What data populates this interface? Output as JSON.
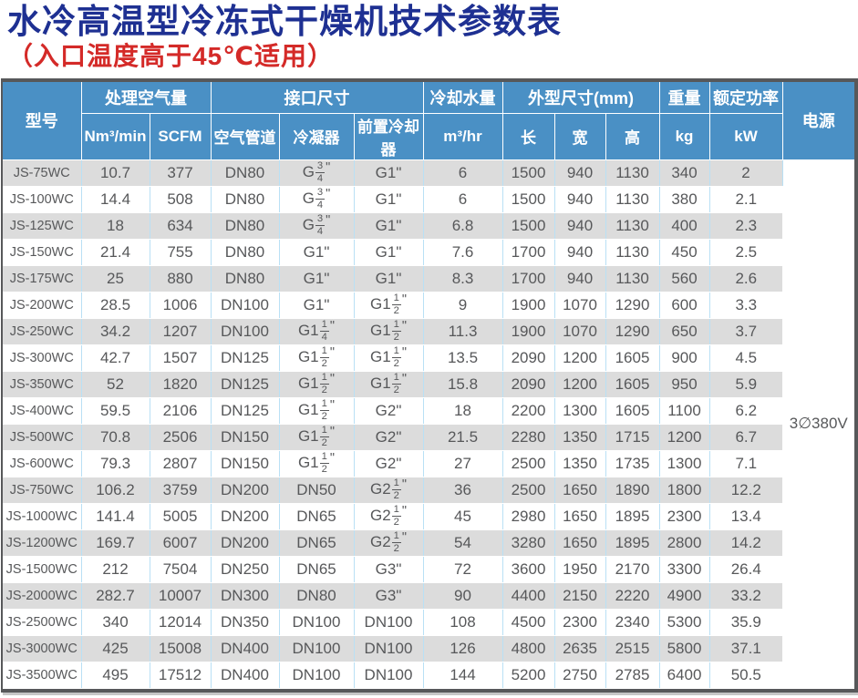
{
  "page": {
    "title": "水冷高温型冷冻式干燥机技术参数表",
    "subtitle": "（入口温度高于45℃适用）"
  },
  "colors": {
    "title_blue": "#1e3092",
    "subtitle_red": "#d42a28",
    "header_blue": "#4a90c5",
    "row_alt_gray": "#dcdcdc",
    "cell_text_gray": "#57585a",
    "cell_border_blue": "#b9e0f5",
    "outer_border_gray": "#57585a"
  },
  "table": {
    "header": {
      "model": "型号",
      "air_volume": "处理空气量",
      "air_volume_units": [
        "Nm³/min",
        "SCFM"
      ],
      "connection": "接口尺寸",
      "connection_subs": [
        "空气管道",
        "冷凝器",
        "前置冷却器"
      ],
      "cooling_water": "冷却水量",
      "cooling_water_unit": "m³/hr",
      "dimensions": "外型尺寸(mm)",
      "dimension_subs": [
        "长",
        "宽",
        "高"
      ],
      "weight": "重量",
      "weight_unit": "kg",
      "rated_power": "额定功率",
      "rated_power_unit": "kW",
      "power_supply": "电源"
    },
    "power_supply_value": "3∅380V",
    "rows": [
      [
        "JS-75WC",
        "10.7",
        "377",
        "DN80",
        "G 3/4\"",
        "G1\"",
        "6",
        "1500",
        "940",
        "1130",
        "340",
        "2"
      ],
      [
        "JS-100WC",
        "14.4",
        "508",
        "DN80",
        "G 3/4\"",
        "G1\"",
        "6",
        "1500",
        "940",
        "1130",
        "380",
        "2.1"
      ],
      [
        "JS-125WC",
        "18",
        "634",
        "DN80",
        "G 3/4\"",
        "G1\"",
        "6.8",
        "1500",
        "940",
        "1130",
        "400",
        "2.3"
      ],
      [
        "JS-150WC",
        "21.4",
        "755",
        "DN80",
        "G1\"",
        "G1\"",
        "7.6",
        "1700",
        "940",
        "1130",
        "450",
        "2.5"
      ],
      [
        "JS-175WC",
        "25",
        "880",
        "DN80",
        "G1\"",
        "G1\"",
        "8.3",
        "1700",
        "940",
        "1130",
        "560",
        "2.6"
      ],
      [
        "JS-200WC",
        "28.5",
        "1006",
        "DN100",
        "G1\"",
        "G1 1/2\"",
        "9",
        "1900",
        "1070",
        "1290",
        "600",
        "3.3"
      ],
      [
        "JS-250WC",
        "34.2",
        "1207",
        "DN100",
        "G1 1/4\"",
        "G1 1/2\"",
        "11.3",
        "1900",
        "1070",
        "1290",
        "650",
        "3.7"
      ],
      [
        "JS-300WC",
        "42.7",
        "1507",
        "DN125",
        "G1 1/2\"",
        "G1 1/2\"",
        "13.5",
        "2090",
        "1200",
        "1605",
        "900",
        "4.5"
      ],
      [
        "JS-350WC",
        "52",
        "1820",
        "DN125",
        "G1 1/2\"",
        "G1 1/2\"",
        "15.8",
        "2090",
        "1200",
        "1605",
        "950",
        "5.9"
      ],
      [
        "JS-400WC",
        "59.5",
        "2106",
        "DN125",
        "G1 1/2\"",
        "G2\"",
        "18",
        "2200",
        "1300",
        "1605",
        "1100",
        "6.2"
      ],
      [
        "JS-500WC",
        "70.8",
        "2506",
        "DN150",
        "G1 1/2\"",
        "G2\"",
        "21.5",
        "2280",
        "1350",
        "1715",
        "1200",
        "6.7"
      ],
      [
        "JS-600WC",
        "79.3",
        "2807",
        "DN150",
        "G1 1/2\"",
        "G2\"",
        "27",
        "2500",
        "1350",
        "1735",
        "1300",
        "7.1"
      ],
      [
        "JS-750WC",
        "106.2",
        "3759",
        "DN200",
        "DN50",
        "G2 1/2\"",
        "36",
        "2500",
        "1650",
        "1890",
        "1800",
        "12.2"
      ],
      [
        "JS-1000WC",
        "141.4",
        "5005",
        "DN200",
        "DN65",
        "G2 1/2\"",
        "45",
        "2980",
        "1650",
        "1895",
        "2300",
        "13.4"
      ],
      [
        "JS-1200WC",
        "169.7",
        "6007",
        "DN200",
        "DN65",
        "G2 1/2\"",
        "54",
        "3280",
        "1650",
        "1895",
        "2800",
        "14.2"
      ],
      [
        "JS-1500WC",
        "212",
        "7504",
        "DN250",
        "DN65",
        "G3\"",
        "72",
        "3600",
        "1950",
        "2170",
        "3300",
        "26.4"
      ],
      [
        "JS-2000WC",
        "282.7",
        "10007",
        "DN300",
        "DN80",
        "G3\"",
        "90",
        "4400",
        "2150",
        "2220",
        "4900",
        "33.2"
      ],
      [
        "JS-2500WC",
        "340",
        "12014",
        "DN350",
        "DN100",
        "DN100",
        "108",
        "4500",
        "2300",
        "2340",
        "5300",
        "35.9"
      ],
      [
        "JS-3000WC",
        "425",
        "15008",
        "DN400",
        "DN100",
        "DN100",
        "126",
        "4800",
        "2635",
        "2515",
        "5800",
        "37.1"
      ],
      [
        "JS-3500WC",
        "495",
        "17512",
        "DN400",
        "DN100",
        "DN100",
        "144",
        "5200",
        "2750",
        "2785",
        "6400",
        "50.5"
      ]
    ]
  }
}
